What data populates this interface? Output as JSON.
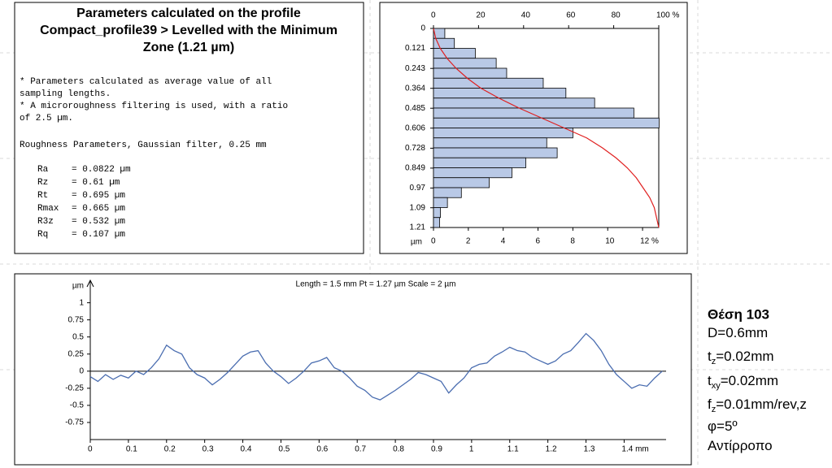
{
  "parameters_panel": {
    "title_lines": [
      "Parameters calculated on the profile",
      "Compact_profile39 > Levelled with the Minimum",
      "Zone (1.21 µm)"
    ],
    "notes": [
      "* Parameters calculated as average value of all",
      "sampling lengths.",
      "* A microroughness filtering is used, with a ratio",
      "of 2.5 µm."
    ],
    "filter_line": "Roughness Parameters, Gaussian filter, 0.25 mm",
    "parameters": [
      {
        "name": "Ra",
        "value": "= 0.0822 µm"
      },
      {
        "name": "Rz",
        "value": "= 0.61 µm"
      },
      {
        "name": "Rt",
        "value": "= 0.695 µm"
      },
      {
        "name": "Rmax",
        "value": "= 0.665 µm"
      },
      {
        "name": "R3z",
        "value": "= 0.532 µm"
      },
      {
        "name": "Rq",
        "value": "= 0.107 µm"
      }
    ]
  },
  "chart_data": [
    {
      "type": "histogram",
      "orientation": "horizontal",
      "ylabel": "µm",
      "bins": [
        0,
        0.0605,
        0.121,
        0.1815,
        0.242,
        0.3025,
        0.363,
        0.4235,
        0.484,
        0.5445,
        0.605,
        0.6655,
        0.726,
        0.7865,
        0.847,
        0.9075,
        0.968,
        1.0285,
        1.089,
        1.1495,
        1.21
      ],
      "values": [
        0.65,
        1.2,
        2.4,
        3.6,
        4.2,
        6.3,
        7.6,
        9.25,
        11.5,
        12.95,
        8,
        6.5,
        7.1,
        5.3,
        4.5,
        3.2,
        1.6,
        0.8,
        0.4,
        0.35
      ],
      "color": "#b9c9e6",
      "ylim": [
        0,
        1.21
      ],
      "y_inverted": true,
      "yticks": [
        0,
        0.121,
        0.243,
        0.364,
        0.485,
        0.606,
        0.728,
        0.849,
        0.97,
        1.09,
        1.21
      ],
      "xlim": [
        0,
        12.93
      ],
      "xticks": [
        0,
        2,
        4,
        6,
        8,
        10,
        {
          "value": 12,
          "label": "12 %"
        }
      ],
      "x2lim": [
        0,
        100
      ],
      "x2ticks": [
        0,
        20,
        40,
        60,
        80,
        {
          "value": 100,
          "label": "100 %"
        }
      ],
      "abbott_curve": {
        "color": "#e02020",
        "axis": "x2",
        "depth": [
          0,
          0.0605,
          0.121,
          0.1815,
          0.242,
          0.3025,
          0.363,
          0.4235,
          0.484,
          0.5445,
          0.605,
          0.6655,
          0.726,
          0.7865,
          0.847,
          0.9075,
          0.968,
          1.0285,
          1.089,
          1.1495,
          1.21
        ],
        "values": [
          0,
          1,
          3,
          6,
          10,
          15,
          21,
          29,
          38,
          48,
          58,
          68,
          75,
          81,
          86,
          90,
          93,
          96,
          98,
          99,
          100
        ]
      }
    },
    {
      "type": "line",
      "title": "Length = 1.5 mm  Pt = 1.27 µm  Scale = 2 µm",
      "ylabel": "µm",
      "color": "#4a6db0",
      "x": [
        0,
        0.02,
        0.04,
        0.06,
        0.08,
        0.1,
        0.12,
        0.14,
        0.16,
        0.18,
        0.2,
        0.22,
        0.24,
        0.26,
        0.28,
        0.3,
        0.32,
        0.34,
        0.36,
        0.38,
        0.4,
        0.42,
        0.44,
        0.46,
        0.48,
        0.5,
        0.52,
        0.54,
        0.56,
        0.58,
        0.6,
        0.62,
        0.64,
        0.66,
        0.68,
        0.7,
        0.72,
        0.74,
        0.76,
        0.78,
        0.8,
        0.82,
        0.84,
        0.86,
        0.88,
        0.9,
        0.92,
        0.94,
        0.96,
        0.98,
        1,
        1.02,
        1.04,
        1.06,
        1.08,
        1.1,
        1.12,
        1.14,
        1.16,
        1.18,
        1.2,
        1.22,
        1.24,
        1.26,
        1.28,
        1.3,
        1.32,
        1.34,
        1.36,
        1.38,
        1.4,
        1.42,
        1.44,
        1.46,
        1.48,
        1.5
      ],
      "values": [
        -0.08,
        -0.15,
        -0.05,
        -0.12,
        -0.06,
        -0.1,
        0,
        -0.05,
        0.05,
        0.18,
        0.38,
        0.3,
        0.25,
        0.05,
        -0.05,
        -0.1,
        -0.2,
        -0.12,
        -0.02,
        0.1,
        0.22,
        0.28,
        0.3,
        0.12,
        0,
        -0.08,
        -0.18,
        -0.1,
        0,
        0.12,
        0.15,
        0.2,
        0.05,
        0,
        -0.1,
        -0.22,
        -0.28,
        -0.38,
        -0.42,
        -0.35,
        -0.28,
        -0.2,
        -0.12,
        -0.02,
        -0.05,
        -0.1,
        -0.15,
        -0.32,
        -0.2,
        -0.1,
        0.05,
        0.1,
        0.12,
        0.22,
        0.28,
        0.35,
        0.3,
        0.28,
        0.2,
        0.15,
        0.1,
        0.15,
        0.25,
        0.3,
        0.42,
        0.55,
        0.45,
        0.3,
        0.1,
        -0.05,
        -0.15,
        -0.25,
        -0.2,
        -0.22,
        -0.1,
        0
      ],
      "xlim": [
        0,
        1.51
      ],
      "xticks": [
        0,
        0.1,
        0.2,
        0.3,
        0.4,
        0.5,
        0.6,
        0.7,
        0.8,
        0.9,
        1,
        1.1,
        1.2,
        1.3,
        {
          "value": 1.4,
          "label": "1.4 mm"
        }
      ],
      "ylim": [
        -1,
        1.15
      ],
      "yticks": [
        1,
        0.75,
        0.5,
        0.25,
        0,
        -0.25,
        -0.5,
        -0.75
      ],
      "zero_line": true,
      "grid": false
    }
  ],
  "conditions": {
    "title": "Θέση 103",
    "lines": [
      {
        "main": "D=0.6mm"
      },
      {
        "main": "t",
        "sub": "z",
        "rest": "=0.02mm"
      },
      {
        "main": "t",
        "sub": "xy",
        "rest": "=0.02mm"
      },
      {
        "main": "f",
        "sub": "z",
        "rest": "=0.01mm/rev,z"
      },
      {
        "main": "φ=5º"
      },
      {
        "main": "Αντίρροπο"
      }
    ]
  }
}
